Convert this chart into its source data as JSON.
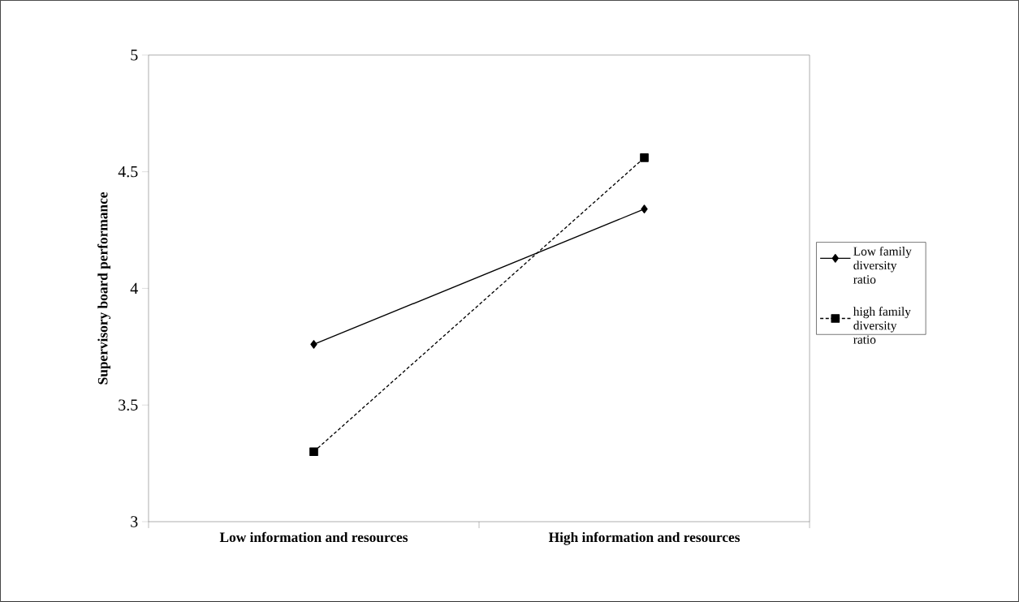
{
  "chart_data": {
    "type": "line",
    "ylabel": "Supervisory  board performance",
    "categories": [
      "Low information and resources",
      "High information and resources"
    ],
    "series": [
      {
        "name": "Low family diversity ratio",
        "color": "#000000",
        "values": [
          3.76,
          4.34
        ],
        "marker": "diamond",
        "line_style": "solid"
      },
      {
        "name": "high family diversity ratio",
        "color": "#000000",
        "values": [
          3.3,
          4.56
        ],
        "marker": "square",
        "line_style": "dashed"
      }
    ],
    "ylim": [
      3,
      5
    ],
    "yticks": [
      3,
      3.5,
      4,
      4.5,
      5
    ],
    "grid": false,
    "legend": "right"
  }
}
